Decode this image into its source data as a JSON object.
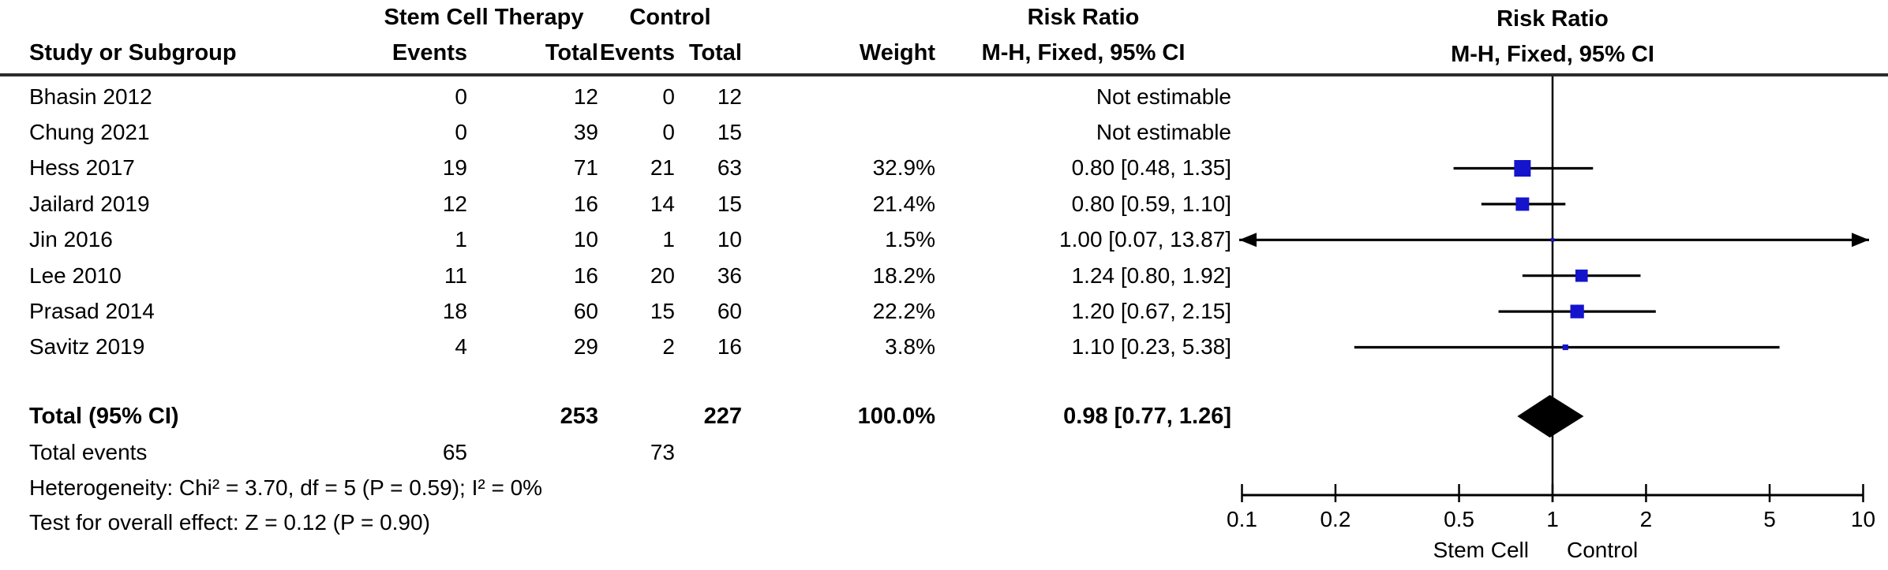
{
  "table": {
    "headers": {
      "study": "Study or Subgroup",
      "group_experimental": "Stem Cell Therapy",
      "group_control": "Control",
      "events": "Events",
      "total": "Total",
      "weight": "Weight",
      "risk_ratio": "Risk Ratio",
      "method_ci": "M-H, Fixed, 95% CI"
    },
    "total_row": {
      "label": "Total (95% CI)",
      "exp_total": "253",
      "ctrl_total": "227",
      "weight": "100.0%",
      "ci_text": "0.98 [0.77, 1.26]"
    },
    "total_events": {
      "label": "Total events",
      "exp": "65",
      "ctrl": "73"
    },
    "heterogeneity": "Heterogeneity: Chi² = 3.70, df = 5 (P = 0.59); I² = 0%",
    "overall_effect": "Test for overall effect: Z = 0.12 (P = 0.90)"
  },
  "chart_data": {
    "type": "forest",
    "title": "Risk Ratio",
    "subtitle": "M-H, Fixed, 95% CI",
    "x_scale": "log",
    "xlim": [
      0.1,
      10
    ],
    "x_ticks": [
      "0.1",
      "0.2",
      "0.5",
      "1",
      "2",
      "5",
      "10"
    ],
    "null_line": 1,
    "footer_left_label": "Stem Cell",
    "footer_right_label": "Control",
    "marker_color": "#1414CD",
    "studies": [
      {
        "name": "Bhasin 2012",
        "exp_events": 0,
        "exp_total": 12,
        "ctrl_events": 0,
        "ctrl_total": 12,
        "weight": null,
        "weight_text": "",
        "rr": null,
        "ci_low": null,
        "ci_high": null,
        "ci_text": "Not estimable"
      },
      {
        "name": "Chung 2021",
        "exp_events": 0,
        "exp_total": 39,
        "ctrl_events": 0,
        "ctrl_total": 15,
        "weight": null,
        "weight_text": "",
        "rr": null,
        "ci_low": null,
        "ci_high": null,
        "ci_text": "Not estimable"
      },
      {
        "name": "Hess 2017",
        "exp_events": 19,
        "exp_total": 71,
        "ctrl_events": 21,
        "ctrl_total": 63,
        "weight": 32.9,
        "weight_text": "32.9%",
        "rr": 0.8,
        "ci_low": 0.48,
        "ci_high": 1.35,
        "ci_text": "0.80 [0.48, 1.35]"
      },
      {
        "name": "Jailard 2019",
        "exp_events": 12,
        "exp_total": 16,
        "ctrl_events": 14,
        "ctrl_total": 15,
        "weight": 21.4,
        "weight_text": "21.4%",
        "rr": 0.8,
        "ci_low": 0.59,
        "ci_high": 1.1,
        "ci_text": "0.80 [0.59, 1.10]"
      },
      {
        "name": "Jin 2016",
        "exp_events": 1,
        "exp_total": 10,
        "ctrl_events": 1,
        "ctrl_total": 10,
        "weight": 1.5,
        "weight_text": "1.5%",
        "rr": 1.0,
        "ci_low": 0.07,
        "ci_high": 13.87,
        "ci_text": "1.00 [0.07, 13.87]"
      },
      {
        "name": "Lee 2010",
        "exp_events": 11,
        "exp_total": 16,
        "ctrl_events": 20,
        "ctrl_total": 36,
        "weight": 18.2,
        "weight_text": "18.2%",
        "rr": 1.24,
        "ci_low": 0.8,
        "ci_high": 1.92,
        "ci_text": "1.24 [0.80, 1.92]"
      },
      {
        "name": "Prasad 2014",
        "exp_events": 18,
        "exp_total": 60,
        "ctrl_events": 15,
        "ctrl_total": 60,
        "weight": 22.2,
        "weight_text": "22.2%",
        "rr": 1.2,
        "ci_low": 0.67,
        "ci_high": 2.15,
        "ci_text": "1.20 [0.67, 2.15]"
      },
      {
        "name": "Savitz 2019",
        "exp_events": 4,
        "exp_total": 29,
        "ctrl_events": 2,
        "ctrl_total": 16,
        "weight": 3.8,
        "weight_text": "3.8%",
        "rr": 1.1,
        "ci_low": 0.23,
        "ci_high": 5.38,
        "ci_text": "1.10 [0.23, 5.38]"
      }
    ],
    "total": {
      "rr": 0.98,
      "ci_low": 0.77,
      "ci_high": 1.26
    },
    "stats": {
      "chi2": 3.7,
      "df": 5,
      "p_heterogeneity": 0.59,
      "i2": "0%",
      "z": 0.12,
      "p_overall": 0.9
    }
  }
}
